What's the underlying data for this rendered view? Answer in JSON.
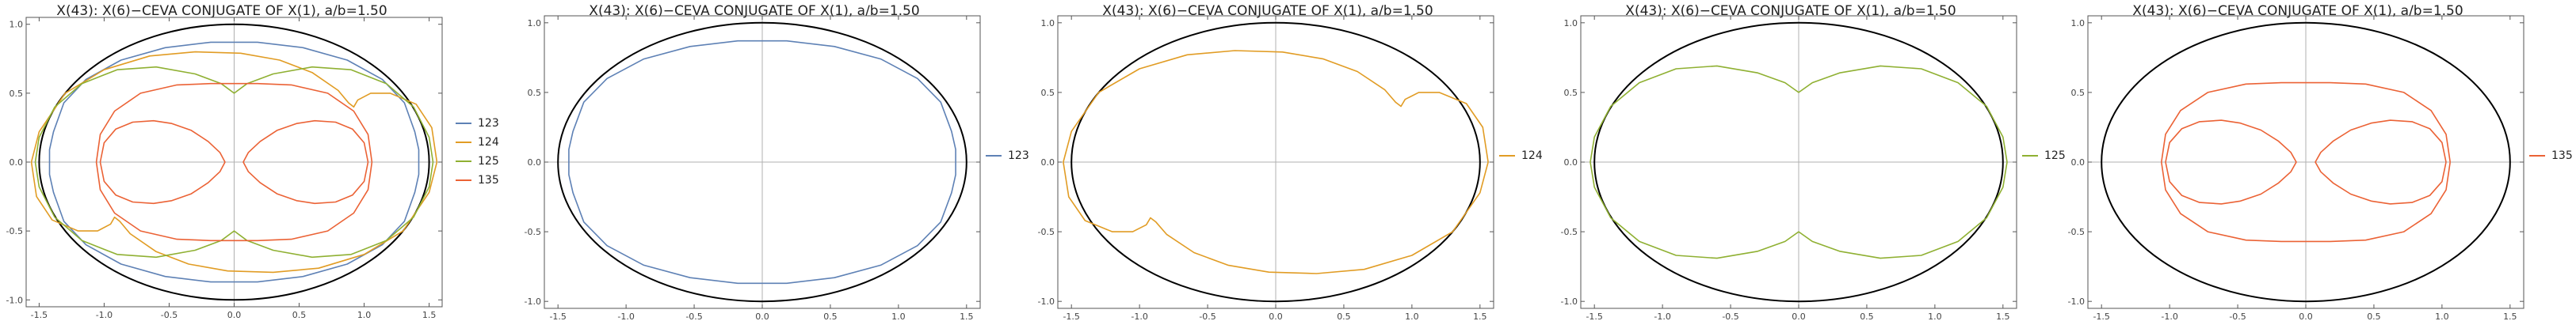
{
  "chart_data": [
    {
      "type": "line",
      "title": "X(43): X(6)−CEVA CONJUGATE OF X(1), a/b=1.50",
      "xlim": [
        -1.6,
        1.6
      ],
      "ylim": [
        -1.05,
        1.05
      ],
      "xticks": [
        -1.5,
        -1.0,
        -0.5,
        0.0,
        0.5,
        1.0,
        1.5
      ],
      "xtick_labels": [
        "-1.5",
        "-1.0",
        "-0.5",
        "0.0",
        "0.5",
        "1.0",
        "1.5"
      ],
      "yticks": [
        -1.0,
        -0.5,
        0.0,
        0.5,
        1.0
      ],
      "ytick_labels": [
        "-1.0",
        "-0.5",
        "0.0",
        "0.5",
        "1.0"
      ],
      "reference_ellipse": {
        "a": 1.5,
        "b": 1.0,
        "color": "#000000"
      },
      "legend_position": "right",
      "series": [
        {
          "name": "123",
          "color": "#5e81b5",
          "x": [
            1.42,
            1.42,
            1.39,
            1.31,
            1.14,
            0.87,
            0.53,
            0.18,
            0.0,
            -0.18,
            -0.53,
            -0.87,
            -1.14,
            -1.31,
            -1.39,
            -1.42,
            -1.42,
            -1.42,
            -1.39,
            -1.31,
            -1.14,
            -0.87,
            -0.53,
            -0.18,
            0.0,
            0.18,
            0.53,
            0.87,
            1.14,
            1.31,
            1.39,
            1.42,
            1.42
          ],
          "y": [
            0.0,
            0.09,
            0.22,
            0.43,
            0.6,
            0.74,
            0.83,
            0.87,
            0.87,
            0.87,
            0.83,
            0.74,
            0.6,
            0.43,
            0.22,
            0.09,
            0.0,
            -0.09,
            -0.22,
            -0.43,
            -0.6,
            -0.74,
            -0.83,
            -0.87,
            -0.87,
            -0.87,
            -0.83,
            -0.74,
            -0.6,
            -0.43,
            -0.22,
            -0.09,
            0.0
          ]
        },
        {
          "name": "124",
          "color": "#e19c24",
          "x": [
            1.56,
            1.52,
            1.4,
            1.2,
            1.05,
            0.95,
            0.92,
            0.88,
            0.8,
            0.6,
            0.35,
            0.05,
            -0.3,
            -0.65,
            -1.0,
            -1.3,
            -1.5,
            -1.56,
            -1.52,
            -1.4,
            -1.2,
            -1.05,
            -0.95,
            -0.92,
            -0.88,
            -0.8,
            -0.6,
            -0.35,
            -0.05,
            0.3,
            0.65,
            1.0,
            1.3,
            1.5,
            1.56
          ],
          "y": [
            0.0,
            0.25,
            0.42,
            0.5,
            0.5,
            0.45,
            0.4,
            0.43,
            0.52,
            0.65,
            0.74,
            0.79,
            0.8,
            0.77,
            0.67,
            0.5,
            0.22,
            0.0,
            -0.25,
            -0.42,
            -0.5,
            -0.5,
            -0.45,
            -0.4,
            -0.43,
            -0.52,
            -0.65,
            -0.74,
            -0.79,
            -0.8,
            -0.77,
            -0.67,
            -0.5,
            -0.22,
            0.0
          ]
        },
        {
          "name": "125",
          "color": "#8fb032",
          "x": [
            1.53,
            1.5,
            1.38,
            1.17,
            0.9,
            0.6,
            0.3,
            0.1,
            0.0,
            -0.1,
            -0.3,
            -0.6,
            -0.9,
            -1.17,
            -1.38,
            -1.5,
            -1.53,
            -1.5,
            -1.38,
            -1.17,
            -0.9,
            -0.6,
            -0.3,
            -0.1,
            0.0,
            0.1,
            0.3,
            0.6,
            0.9,
            1.17,
            1.38,
            1.5,
            1.53
          ],
          "y": [
            0.0,
            0.18,
            0.4,
            0.57,
            0.67,
            0.69,
            0.64,
            0.57,
            0.5,
            0.57,
            0.64,
            0.69,
            0.67,
            0.57,
            0.4,
            0.18,
            0.0,
            -0.18,
            -0.4,
            -0.57,
            -0.67,
            -0.69,
            -0.64,
            -0.57,
            -0.5,
            -0.57,
            -0.64,
            -0.69,
            -0.67,
            -0.57,
            -0.4,
            -0.18,
            0.0
          ]
        },
        {
          "name": "135",
          "color": "#eb6235",
          "x": [
            1.06,
            1.03,
            0.92,
            0.72,
            0.44,
            0.18,
            0.0,
            -0.18,
            -0.44,
            -0.72,
            -0.92,
            -1.03,
            -1.06,
            -1.03,
            -0.92,
            -0.72,
            -0.44,
            -0.18,
            0.0,
            0.18,
            0.44,
            0.72,
            0.92,
            1.03,
            1.06
          ],
          "y": [
            0.0,
            0.2,
            0.37,
            0.5,
            0.56,
            0.57,
            0.57,
            0.57,
            0.56,
            0.5,
            0.37,
            0.2,
            0.0,
            -0.2,
            -0.37,
            -0.5,
            -0.56,
            -0.57,
            -0.57,
            -0.57,
            -0.56,
            -0.5,
            -0.37,
            -0.2,
            0.0
          ],
          "x2": [
            1.03,
            1.0,
            0.91,
            0.78,
            0.62,
            0.48,
            0.33,
            0.2,
            0.11,
            0.07,
            0.11,
            0.2,
            0.33,
            0.48,
            0.62,
            0.78,
            0.91,
            1.0,
            1.03
          ],
          "y2": [
            0.0,
            0.14,
            0.24,
            0.29,
            0.3,
            0.28,
            0.23,
            0.15,
            0.07,
            0.0,
            -0.07,
            -0.15,
            -0.23,
            -0.28,
            -0.3,
            -0.29,
            -0.24,
            -0.14,
            0.0
          ]
        }
      ]
    },
    {
      "type": "line",
      "title": "X(43): X(6)−CEVA CONJUGATE OF X(1), a/b=1.50",
      "xlim": [
        -1.6,
        1.6
      ],
      "ylim": [
        -1.05,
        1.05
      ],
      "xticks": [
        -1.5,
        -1.0,
        -0.5,
        0.0,
        0.5,
        1.0,
        1.5
      ],
      "xtick_labels": [
        "-1.5",
        "-1.0",
        "-0.5",
        "0.0",
        "0.5",
        "1.0",
        "1.5"
      ],
      "yticks": [
        -1.0,
        -0.5,
        0.0,
        0.5,
        1.0
      ],
      "ytick_labels": [
        "-1.0",
        "-0.5",
        "0.0",
        "0.5",
        "1.0"
      ],
      "reference_ellipse": {
        "a": 1.5,
        "b": 1.0,
        "color": "#000000"
      },
      "legend_position": "right",
      "series": [
        {
          "name": "123",
          "color": "#5e81b5",
          "x": [
            1.42,
            1.42,
            1.39,
            1.31,
            1.14,
            0.87,
            0.53,
            0.18,
            0.0,
            -0.18,
            -0.53,
            -0.87,
            -1.14,
            -1.31,
            -1.39,
            -1.42,
            -1.42,
            -1.42,
            -1.39,
            -1.31,
            -1.14,
            -0.87,
            -0.53,
            -0.18,
            0.0,
            0.18,
            0.53,
            0.87,
            1.14,
            1.31,
            1.39,
            1.42,
            1.42
          ],
          "y": [
            0.0,
            0.09,
            0.22,
            0.43,
            0.6,
            0.74,
            0.83,
            0.87,
            0.87,
            0.87,
            0.83,
            0.74,
            0.6,
            0.43,
            0.22,
            0.09,
            0.0,
            -0.09,
            -0.22,
            -0.43,
            -0.6,
            -0.74,
            -0.83,
            -0.87,
            -0.87,
            -0.87,
            -0.83,
            -0.74,
            -0.6,
            -0.43,
            -0.22,
            -0.09,
            0.0
          ]
        }
      ]
    },
    {
      "type": "line",
      "title": "X(43): X(6)−CEVA CONJUGATE OF X(1), a/b=1.50",
      "xlim": [
        -1.6,
        1.6
      ],
      "ylim": [
        -1.05,
        1.05
      ],
      "xticks": [
        -1.5,
        -1.0,
        -0.5,
        0.0,
        0.5,
        1.0,
        1.5
      ],
      "xtick_labels": [
        "-1.5",
        "-1.0",
        "-0.5",
        "0.0",
        "0.5",
        "1.0",
        "1.5"
      ],
      "yticks": [
        -1.0,
        -0.5,
        0.0,
        0.5,
        1.0
      ],
      "ytick_labels": [
        "-1.0",
        "-0.5",
        "0.0",
        "0.5",
        "1.0"
      ],
      "reference_ellipse": {
        "a": 1.5,
        "b": 1.0,
        "color": "#000000"
      },
      "legend_position": "right",
      "series": [
        {
          "name": "124",
          "color": "#e19c24",
          "x": [
            1.56,
            1.52,
            1.4,
            1.2,
            1.05,
            0.95,
            0.92,
            0.88,
            0.8,
            0.6,
            0.35,
            0.05,
            -0.3,
            -0.65,
            -1.0,
            -1.3,
            -1.5,
            -1.56,
            -1.52,
            -1.4,
            -1.2,
            -1.05,
            -0.95,
            -0.92,
            -0.88,
            -0.8,
            -0.6,
            -0.35,
            -0.05,
            0.3,
            0.65,
            1.0,
            1.3,
            1.5,
            1.56
          ],
          "y": [
            0.0,
            0.25,
            0.42,
            0.5,
            0.5,
            0.45,
            0.4,
            0.43,
            0.52,
            0.65,
            0.74,
            0.79,
            0.8,
            0.77,
            0.67,
            0.5,
            0.22,
            0.0,
            -0.25,
            -0.42,
            -0.5,
            -0.5,
            -0.45,
            -0.4,
            -0.43,
            -0.52,
            -0.65,
            -0.74,
            -0.79,
            -0.8,
            -0.77,
            -0.67,
            -0.5,
            -0.22,
            0.0
          ]
        }
      ]
    },
    {
      "type": "line",
      "title": "X(43): X(6)−CEVA CONJUGATE OF X(1), a/b=1.50",
      "xlim": [
        -1.6,
        1.6
      ],
      "ylim": [
        -1.05,
        1.05
      ],
      "xticks": [
        -1.5,
        -1.0,
        -0.5,
        0.0,
        0.5,
        1.0,
        1.5
      ],
      "xtick_labels": [
        "-1.5",
        "-1.0",
        "-0.5",
        "0.0",
        "0.5",
        "1.0",
        "1.5"
      ],
      "yticks": [
        -1.0,
        -0.5,
        0.0,
        0.5,
        1.0
      ],
      "ytick_labels": [
        "-1.0",
        "-0.5",
        "0.0",
        "0.5",
        "1.0"
      ],
      "reference_ellipse": {
        "a": 1.5,
        "b": 1.0,
        "color": "#000000"
      },
      "legend_position": "right",
      "series": [
        {
          "name": "125",
          "color": "#8fb032",
          "x": [
            1.53,
            1.5,
            1.38,
            1.17,
            0.9,
            0.6,
            0.3,
            0.1,
            0.0,
            -0.1,
            -0.3,
            -0.6,
            -0.9,
            -1.17,
            -1.38,
            -1.5,
            -1.53,
            -1.5,
            -1.38,
            -1.17,
            -0.9,
            -0.6,
            -0.3,
            -0.1,
            0.0,
            0.1,
            0.3,
            0.6,
            0.9,
            1.17,
            1.38,
            1.5,
            1.53
          ],
          "y": [
            0.0,
            0.18,
            0.4,
            0.57,
            0.67,
            0.69,
            0.64,
            0.57,
            0.5,
            0.57,
            0.64,
            0.69,
            0.67,
            0.57,
            0.4,
            0.18,
            0.0,
            -0.18,
            -0.4,
            -0.57,
            -0.67,
            -0.69,
            -0.64,
            -0.57,
            -0.5,
            -0.57,
            -0.64,
            -0.69,
            -0.67,
            -0.57,
            -0.4,
            -0.18,
            0.0
          ]
        }
      ]
    },
    {
      "type": "line",
      "title": "X(43): X(6)−CEVA CONJUGATE OF X(1), a/b=1.50",
      "xlim": [
        -1.6,
        1.6
      ],
      "ylim": [
        -1.05,
        1.05
      ],
      "xticks": [
        -1.5,
        -1.0,
        -0.5,
        0.0,
        0.5,
        1.0,
        1.5
      ],
      "xtick_labels": [
        "-1.5",
        "-1.0",
        "-0.5",
        "0.0",
        "0.5",
        "1.0",
        "1.5"
      ],
      "yticks": [
        -1.0,
        -0.5,
        0.0,
        0.5,
        1.0
      ],
      "ytick_labels": [
        "-1.0",
        "-0.5",
        "0.0",
        "0.5",
        "1.0"
      ],
      "reference_ellipse": {
        "a": 1.5,
        "b": 1.0,
        "color": "#000000"
      },
      "legend_position": "right",
      "series": [
        {
          "name": "135",
          "color": "#eb6235",
          "x": [
            1.06,
            1.03,
            0.92,
            0.72,
            0.44,
            0.18,
            0.0,
            -0.18,
            -0.44,
            -0.72,
            -0.92,
            -1.03,
            -1.06,
            -1.03,
            -0.92,
            -0.72,
            -0.44,
            -0.18,
            0.0,
            0.18,
            0.44,
            0.72,
            0.92,
            1.03,
            1.06
          ],
          "y": [
            0.0,
            0.2,
            0.37,
            0.5,
            0.56,
            0.57,
            0.57,
            0.57,
            0.56,
            0.5,
            0.37,
            0.2,
            0.0,
            -0.2,
            -0.37,
            -0.5,
            -0.56,
            -0.57,
            -0.57,
            -0.57,
            -0.56,
            -0.5,
            -0.37,
            -0.2,
            0.0
          ],
          "x2": [
            1.03,
            1.0,
            0.91,
            0.78,
            0.62,
            0.48,
            0.33,
            0.2,
            0.11,
            0.07,
            0.11,
            0.2,
            0.33,
            0.48,
            0.62,
            0.78,
            0.91,
            1.0,
            1.03
          ],
          "y2": [
            0.0,
            0.14,
            0.24,
            0.29,
            0.3,
            0.28,
            0.23,
            0.15,
            0.07,
            0.0,
            -0.07,
            -0.15,
            -0.23,
            -0.28,
            -0.3,
            -0.29,
            -0.24,
            -0.14,
            0.0
          ]
        }
      ]
    }
  ]
}
